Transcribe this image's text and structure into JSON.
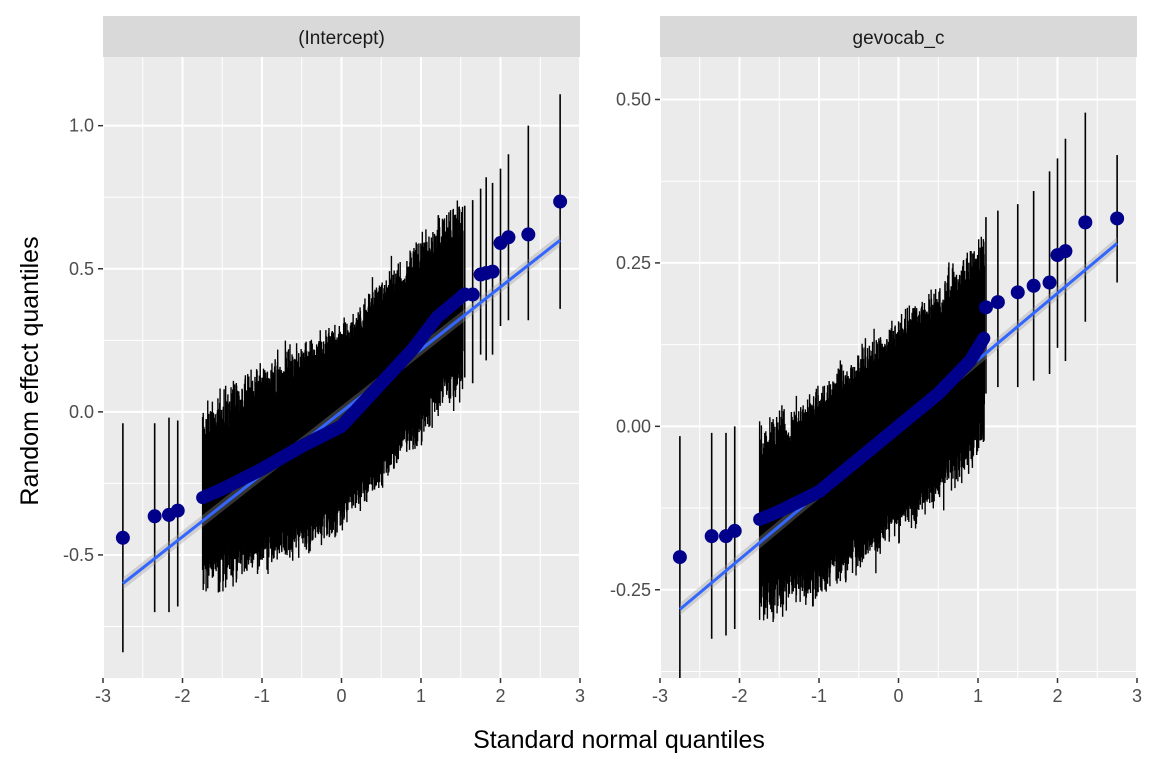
{
  "chart_data": {
    "type": "scatter",
    "xlabel": "Standard normal quantiles",
    "ylabel": "Random effect quantiles",
    "grid": true,
    "point_color": "#00008B",
    "line_color": "#3366FF",
    "panel_bg": "#EBEBEB",
    "strip_bg": "#D9D9D9",
    "errorbar_color": "#000000",
    "panels": [
      {
        "strip_label": "(Intercept)",
        "xlim": [
          -3,
          3
        ],
        "ylim": [
          -0.93,
          1.24
        ],
        "x_ticks": [
          -3,
          -2,
          -1,
          0,
          1,
          2,
          3
        ],
        "x_tick_labels": [
          "-3",
          "-2",
          "-1",
          "0",
          "1",
          "2",
          "3"
        ],
        "y_ticks": [
          -0.5,
          0.0,
          0.5,
          1.0
        ],
        "y_tick_labels": [
          "-0.5",
          "0.0",
          "0.5",
          "1.0"
        ],
        "fit_line": {
          "x": [
            -2.75,
            2.75
          ],
          "y": [
            -0.6,
            0.6
          ]
        },
        "anchors": [
          [
            -3.0,
            -0.38
          ],
          [
            -2.4,
            -0.36
          ],
          [
            -2.0,
            -0.33
          ],
          [
            -1.5,
            -0.27
          ],
          [
            -1.0,
            -0.2
          ],
          [
            -0.5,
            -0.12
          ],
          [
            0.0,
            -0.05
          ],
          [
            0.5,
            0.1
          ],
          [
            0.9,
            0.22
          ],
          [
            1.2,
            0.33
          ],
          [
            1.5,
            0.4
          ],
          [
            1.7,
            0.46
          ],
          [
            2.0,
            0.5
          ]
        ],
        "half_width_inner": 0.27,
        "points": [
          {
            "x": -2.75,
            "y": -0.44,
            "lo": -0.84,
            "hi": -0.04
          },
          {
            "x": -2.35,
            "y": -0.365,
            "lo": -0.7,
            "hi": -0.04
          },
          {
            "x": -2.17,
            "y": -0.36,
            "lo": -0.7,
            "hi": -0.02
          },
          {
            "x": -2.06,
            "y": -0.345,
            "lo": -0.68,
            "hi": -0.03
          },
          {
            "x": 1.55,
            "y": 0.41,
            "lo": 0.12,
            "hi": 0.72
          },
          {
            "x": 1.65,
            "y": 0.41,
            "lo": 0.1,
            "hi": 0.74
          },
          {
            "x": 1.75,
            "y": 0.48,
            "lo": 0.2,
            "hi": 0.78
          },
          {
            "x": 1.82,
            "y": 0.485,
            "lo": 0.18,
            "hi": 0.82
          },
          {
            "x": 1.9,
            "y": 0.49,
            "lo": 0.2,
            "hi": 0.8
          },
          {
            "x": 2.0,
            "y": 0.59,
            "lo": 0.3,
            "hi": 0.85
          },
          {
            "x": 2.1,
            "y": 0.61,
            "lo": 0.32,
            "hi": 0.9
          },
          {
            "x": 2.35,
            "y": 0.62,
            "lo": 0.32,
            "hi": 1.0
          },
          {
            "x": 2.75,
            "y": 0.735,
            "lo": 0.36,
            "hi": 1.11
          }
        ]
      },
      {
        "strip_label": "gevocab_c",
        "xlim": [
          -3,
          3
        ],
        "ylim": [
          -0.385,
          0.565
        ],
        "x_ticks": [
          -3,
          -2,
          -1,
          0,
          1,
          2,
          3
        ],
        "x_tick_labels": [
          "-3",
          "-2",
          "-1",
          "0",
          "1",
          "2",
          "3"
        ],
        "y_ticks": [
          -0.25,
          0.0,
          0.25,
          0.5
        ],
        "y_tick_labels": [
          "-0.25",
          "0.00",
          "0.25",
          "0.50"
        ],
        "fit_line": {
          "x": [
            -2.75,
            2.75
          ],
          "y": [
            -0.28,
            0.28
          ]
        },
        "anchors": [
          [
            -3.0,
            -0.175
          ],
          [
            -2.4,
            -0.17
          ],
          [
            -2.0,
            -0.155
          ],
          [
            -1.5,
            -0.13
          ],
          [
            -1.0,
            -0.1
          ],
          [
            -0.5,
            -0.05
          ],
          [
            0.0,
            0.0
          ],
          [
            0.5,
            0.05
          ],
          [
            0.9,
            0.1
          ],
          [
            1.1,
            0.14
          ],
          [
            1.3,
            0.19
          ],
          [
            1.6,
            0.205
          ],
          [
            2.0,
            0.22
          ]
        ],
        "half_width_inner": 0.125,
        "points": [
          {
            "x": -2.75,
            "y": -0.2,
            "lo": -0.385,
            "hi": -0.015
          },
          {
            "x": -2.35,
            "y": -0.168,
            "lo": -0.325,
            "hi": -0.01
          },
          {
            "x": -2.17,
            "y": -0.168,
            "lo": -0.32,
            "hi": -0.01
          },
          {
            "x": -2.06,
            "y": -0.16,
            "lo": -0.31,
            "hi": 0.0
          },
          {
            "x": 1.1,
            "y": 0.182,
            "lo": 0.05,
            "hi": 0.32
          },
          {
            "x": 1.25,
            "y": 0.19,
            "lo": 0.06,
            "hi": 0.33
          },
          {
            "x": 1.5,
            "y": 0.205,
            "lo": 0.06,
            "hi": 0.34
          },
          {
            "x": 1.7,
            "y": 0.215,
            "lo": 0.07,
            "hi": 0.36
          },
          {
            "x": 1.9,
            "y": 0.22,
            "lo": 0.08,
            "hi": 0.39
          },
          {
            "x": 2.0,
            "y": 0.262,
            "lo": 0.12,
            "hi": 0.41
          },
          {
            "x": 2.1,
            "y": 0.268,
            "lo": 0.1,
            "hi": 0.44
          },
          {
            "x": 2.35,
            "y": 0.312,
            "lo": 0.16,
            "hi": 0.48
          },
          {
            "x": 2.75,
            "y": 0.318,
            "lo": 0.22,
            "hi": 0.415
          }
        ]
      }
    ]
  }
}
